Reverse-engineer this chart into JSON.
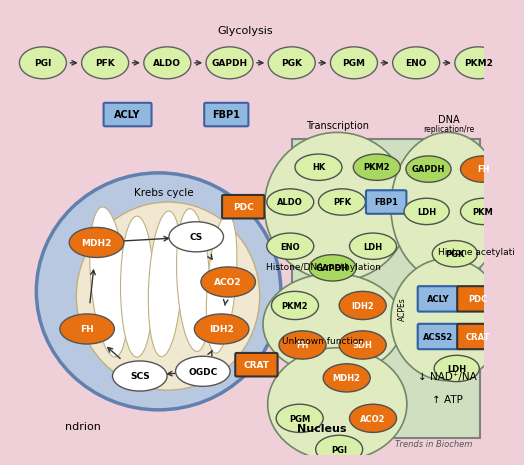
{
  "bg_color": "#f0d0d8",
  "glycolysis_label": "Glycolysis",
  "glycolysis_nodes": [
    "PGI",
    "PFK",
    "ALDO",
    "GAPDH",
    "PGK",
    "PGM",
    "ENO",
    "PKM2"
  ],
  "acly_label": "ACLY",
  "fbp1_label": "FBP1",
  "krebs_label": "Krebs cycle",
  "nucleus_title": "Nucleus",
  "transcription_title": "Transcription",
  "dna_title1": "DNA",
  "dna_title2": "replication/re",
  "histone_methyl_title": "Histone/DNA methylation",
  "histone_acetyl_title": "Histone acetylati",
  "unknown_title": "Unknown function",
  "nad_text": "↓ NAD⁺/NA",
  "atp_text": "↑ ATP",
  "acpes_label": "ACPEs",
  "trends_text": "Trends in Biochem",
  "orange": "#e87010",
  "light_green": "#d8f0a8",
  "mid_green": "#a8d860",
  "blue_box": "#90b8e0",
  "white": "#ffffff",
  "mito_outer_fill": "#b8c8e0",
  "mito_outer_edge": "#6080b0",
  "mito_inner_fill": "#f0e8d0",
  "nucleus_fill": "#d0dfc0",
  "oval_fill": "#e0ecc0",
  "oval_edge": "#708868"
}
